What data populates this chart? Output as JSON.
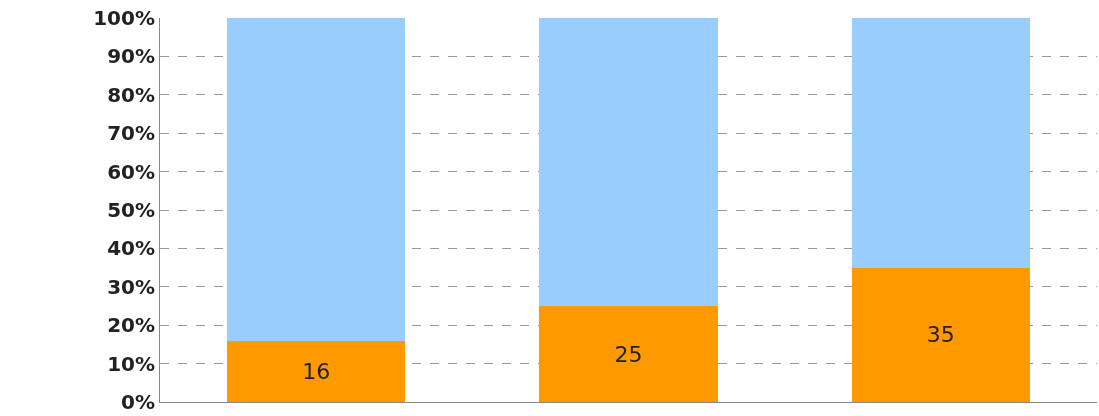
{
  "chart_data": {
    "type": "bar",
    "stacked": true,
    "categories": [
      null,
      null,
      null
    ],
    "series": [
      {
        "color": "#ff9900",
        "values": [
          16,
          25,
          35
        ],
        "value_labels": [
          "16",
          "25",
          "35"
        ]
      },
      {
        "color": "#99ccff",
        "values": [
          84,
          75,
          65
        ]
      }
    ],
    "ylim": [
      0,
      100
    ],
    "yticks": [
      {
        "value": 0,
        "label": "0%"
      },
      {
        "value": 10,
        "label": "10%"
      },
      {
        "value": 20,
        "label": "20%"
      },
      {
        "value": 30,
        "label": "30%"
      },
      {
        "value": 40,
        "label": "40%"
      },
      {
        "value": 50,
        "label": "50%"
      },
      {
        "value": 60,
        "label": "60%"
      },
      {
        "value": 70,
        "label": "70%"
      },
      {
        "value": 80,
        "label": "80%"
      },
      {
        "value": 90,
        "label": "90%"
      },
      {
        "value": 100,
        "label": "100%"
      }
    ],
    "grid": "y",
    "tick_labels": "y"
  }
}
